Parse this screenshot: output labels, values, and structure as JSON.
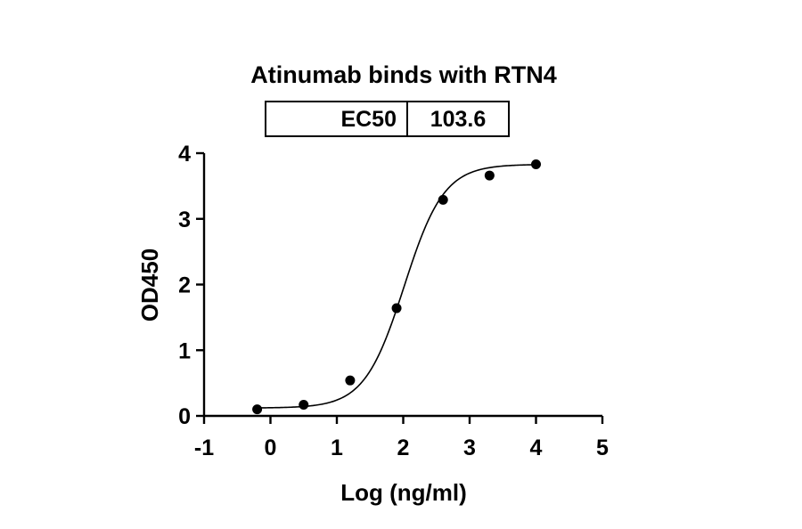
{
  "chart_data": {
    "type": "scatter",
    "title": "Atinumab binds with RTN4",
    "xlabel": "Log (ng/ml)",
    "ylabel": "OD450",
    "xlim": [
      -1,
      5
    ],
    "ylim": [
      0,
      4
    ],
    "x_ticks": [
      -1,
      0,
      1,
      2,
      3,
      4,
      5
    ],
    "y_ticks": [
      0,
      1,
      2,
      3,
      4
    ],
    "grid": false,
    "series": [
      {
        "x": [
          -0.2,
          0.5,
          1.2,
          1.9,
          2.6,
          3.3,
          4.0
        ],
        "y": [
          0.1,
          0.17,
          0.54,
          1.64,
          3.29,
          3.66,
          3.83
        ]
      }
    ],
    "fit": {
      "model": "4PL",
      "bottom": 0.12,
      "top": 3.83,
      "logEC50": 2.015,
      "hillslope": 1.45
    },
    "ec50_table": {
      "label": "EC50",
      "value": "103.6"
    }
  }
}
